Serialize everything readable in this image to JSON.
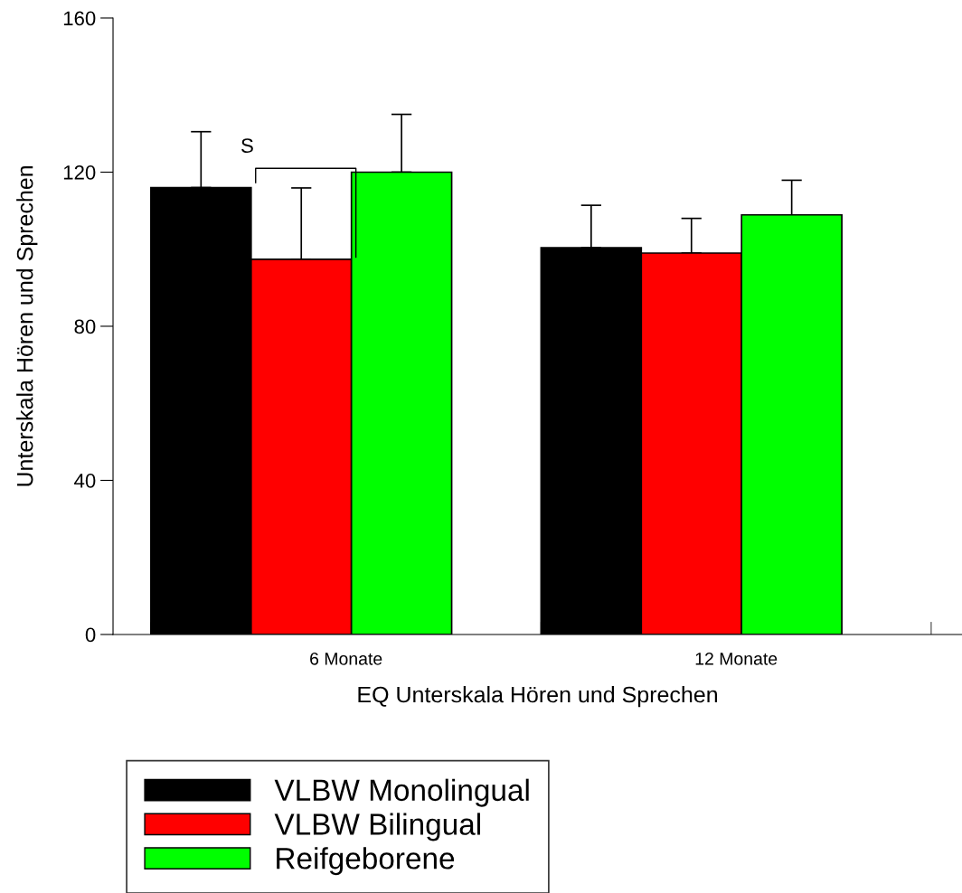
{
  "chart_data": {
    "type": "bar",
    "xlabel": "EQ Unterskala Hören und Sprechen",
    "ylabel": "Unterskala Hören und Sprechen",
    "categories": [
      "6 Monate",
      "12 Monate"
    ],
    "series": [
      {
        "name": "VLBW Monolingual",
        "color": "#000000",
        "values": [
          116,
          100.4
        ],
        "errors": [
          [
            116,
            130.5
          ],
          [
            100.4,
            111.4
          ]
        ]
      },
      {
        "name": "VLBW Bilingual",
        "color": "#ff0000",
        "values": [
          97.4,
          99
        ],
        "errors": [
          [
            97.4,
            115.9
          ],
          [
            99,
            108
          ]
        ]
      },
      {
        "name": "Reifgeborene",
        "color": "#00ff00",
        "values": [
          120,
          108.9
        ],
        "errors": [
          [
            120,
            135
          ],
          [
            108.9,
            117.9
          ]
        ]
      }
    ],
    "ylim": [
      0,
      160
    ],
    "yticks": [
      0,
      40,
      80,
      120,
      160
    ],
    "grid": false,
    "legend": "bottom left",
    "annotations": [
      "S"
    ]
  }
}
